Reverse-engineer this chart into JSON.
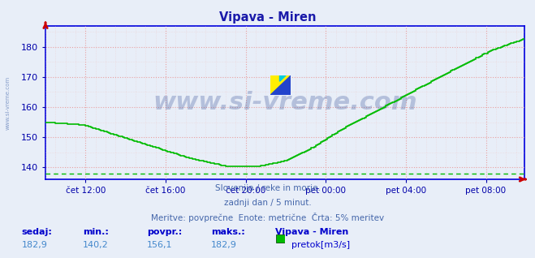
{
  "title": "Vipava - Miren",
  "title_color": "#1a1aaa",
  "bg_color": "#e8eef8",
  "plot_bg_color": "#e8eef8",
  "line_color": "#00bb00",
  "line_width": 1.2,
  "grid_color": "#e8a0a0",
  "grid_style": ":",
  "ylim": [
    136,
    187
  ],
  "yticks": [
    140,
    150,
    160,
    170,
    180
  ],
  "tick_color": "#0000aa",
  "spine_color": "#0000dd",
  "dashed_line_y": 138.0,
  "dashed_line_color": "#00bb00",
  "watermark_text": "www.si-vreme.com",
  "watermark_color": "#1a3a8a",
  "watermark_alpha": 0.25,
  "watermark_fontsize": 22,
  "subtitle1": "Slovenija / reke in morje.",
  "subtitle2": "zadnji dan / 5 minut.",
  "subtitle3": "Meritve: povprečne  Enote: metrične  Črta: 5% meritev",
  "subtitle_color": "#4466aa",
  "footer_label_color": "#0000cc",
  "footer_value_color": "#4488cc",
  "sedaj_label": "sedaj:",
  "min_label": "min.:",
  "povpr_label": "povpr.:",
  "maks_label": "maks.:",
  "station_label": "Vipava - Miren",
  "legend_label": "pretok[m3/s]",
  "sedaj_val": "182,9",
  "min_val": "140,2",
  "povpr_val": "156,1",
  "maks_val": "182,9",
  "xtick_labels": [
    "čet 12:00",
    "čet 16:00",
    "čet 20:00",
    "pet 00:00",
    "pet 04:00",
    "pet 08:00"
  ],
  "num_points": 288,
  "side_watermark": "www.si-vreme.com"
}
